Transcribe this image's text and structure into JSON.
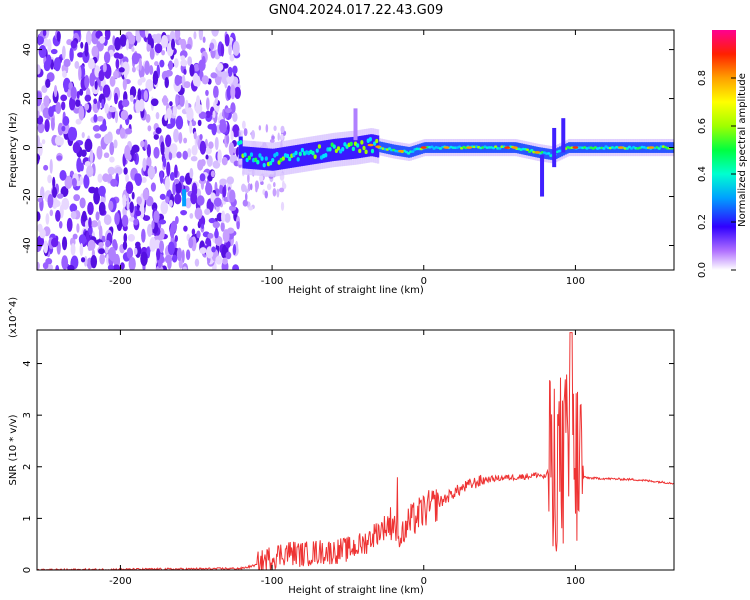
{
  "title": "GN04.2024.017.22.43.G09",
  "chart_data": [
    {
      "type": "heatmap",
      "xlabel": "Height of straight line (km)",
      "ylabel": "Frequency (Hz)",
      "xlim": [
        -255,
        165
      ],
      "ylim": [
        -50,
        48
      ],
      "x_ticks": [
        -200,
        -100,
        0,
        100
      ],
      "y_ticks": [
        -40,
        -20,
        0,
        20,
        40
      ],
      "colorbar": {
        "label": "Normalized spectral amplitude",
        "ticks": [
          0.0,
          0.2,
          0.4,
          0.6,
          0.8
        ],
        "range": [
          0,
          1
        ]
      },
      "signal_trace": {
        "x": [
          -120,
          -100,
          -80,
          -60,
          -45,
          -35,
          -20,
          -10,
          0,
          20,
          40,
          60,
          75,
          85,
          95,
          120,
          165
        ],
        "y": [
          -4,
          -5,
          -3,
          -1,
          0,
          1,
          -1,
          -2,
          0,
          0,
          0,
          0,
          -2,
          -3,
          0,
          0,
          0
        ]
      }
    },
    {
      "type": "line",
      "xlabel": "Height of straight line (km)",
      "ylabel": "SNR (10 * v/v)",
      "y_multiplier": "(x10^4)",
      "xlim": [
        -255,
        165
      ],
      "ylim": [
        0,
        4.65
      ],
      "x_ticks": [
        -200,
        -100,
        0,
        100
      ],
      "y_ticks": [
        0,
        1,
        2,
        3,
        4
      ],
      "color": "#ee3333",
      "series": [
        {
          "x": [
            -255,
            -200,
            -150,
            -120,
            -110,
            -100,
            -90,
            -80,
            -70,
            -60,
            -50,
            -40,
            -30,
            -20,
            -15,
            -10,
            0,
            10,
            20,
            30,
            40,
            50,
            60,
            70,
            75,
            80,
            85,
            90,
            95,
            100,
            105,
            110,
            120,
            140,
            165
          ],
          "y": [
            0.0,
            0.01,
            0.02,
            0.03,
            0.1,
            0.25,
            0.35,
            0.3,
            0.35,
            0.35,
            0.4,
            0.5,
            0.75,
            0.95,
            0.6,
            0.9,
            1.15,
            1.3,
            1.5,
            1.65,
            1.75,
            1.78,
            1.8,
            1.82,
            1.85,
            1.8,
            2.0,
            2.2,
            3.2,
            2.5,
            1.8,
            1.78,
            1.77,
            1.75,
            1.68
          ]
        }
      ]
    }
  ]
}
